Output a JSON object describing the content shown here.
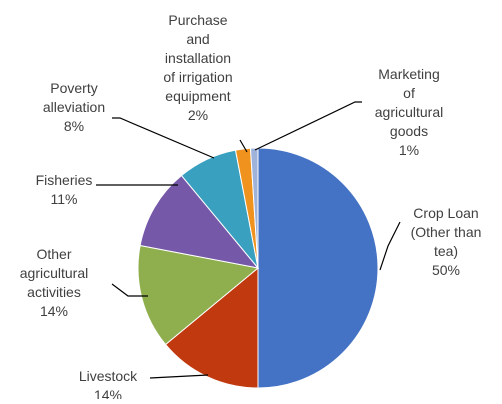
{
  "chart_data": {
    "type": "pie",
    "title": "",
    "start_angle_deg": 0,
    "direction": "clockwise",
    "slices": [
      {
        "label": "Crop Loan (Other than tea)",
        "label_lines": [
          "Crop Loan",
          "(Other than",
          "tea)",
          "50%"
        ],
        "value": 50,
        "percent_label": "50%",
        "color": "#4472C4"
      },
      {
        "label": "Livestock",
        "label_lines": [
          "Livestock",
          "14%"
        ],
        "value": 14,
        "percent_label": "14%",
        "color": "#C0390F"
      },
      {
        "label": "Other agricultural activities",
        "label_lines": [
          "Other",
          "agricultural",
          "activities",
          "14%"
        ],
        "value": 14,
        "percent_label": "14%",
        "color": "#8FAF4F"
      },
      {
        "label": "Fisheries",
        "label_lines": [
          "Fisheries",
          "11%"
        ],
        "value": 11,
        "percent_label": "11%",
        "color": "#7658A8"
      },
      {
        "label": "Poverty alleviation",
        "label_lines": [
          "Poverty",
          "alleviation",
          "8%"
        ],
        "value": 8,
        "percent_label": "8%",
        "color": "#3AA0C0"
      },
      {
        "label": "Purchase and installation of irrigation equipment",
        "label_lines": [
          "Purchase",
          "and",
          "installation",
          "of irrigation",
          "equipment",
          "2%"
        ],
        "value": 2,
        "percent_label": "2%",
        "color": "#F0921E"
      },
      {
        "label": "Marketing of agricultural goods",
        "label_lines": [
          "Marketing",
          "of",
          "agricultural",
          "goods",
          "1%"
        ],
        "value": 1,
        "percent_label": "1%",
        "color": "#9FB3DA"
      }
    ]
  }
}
